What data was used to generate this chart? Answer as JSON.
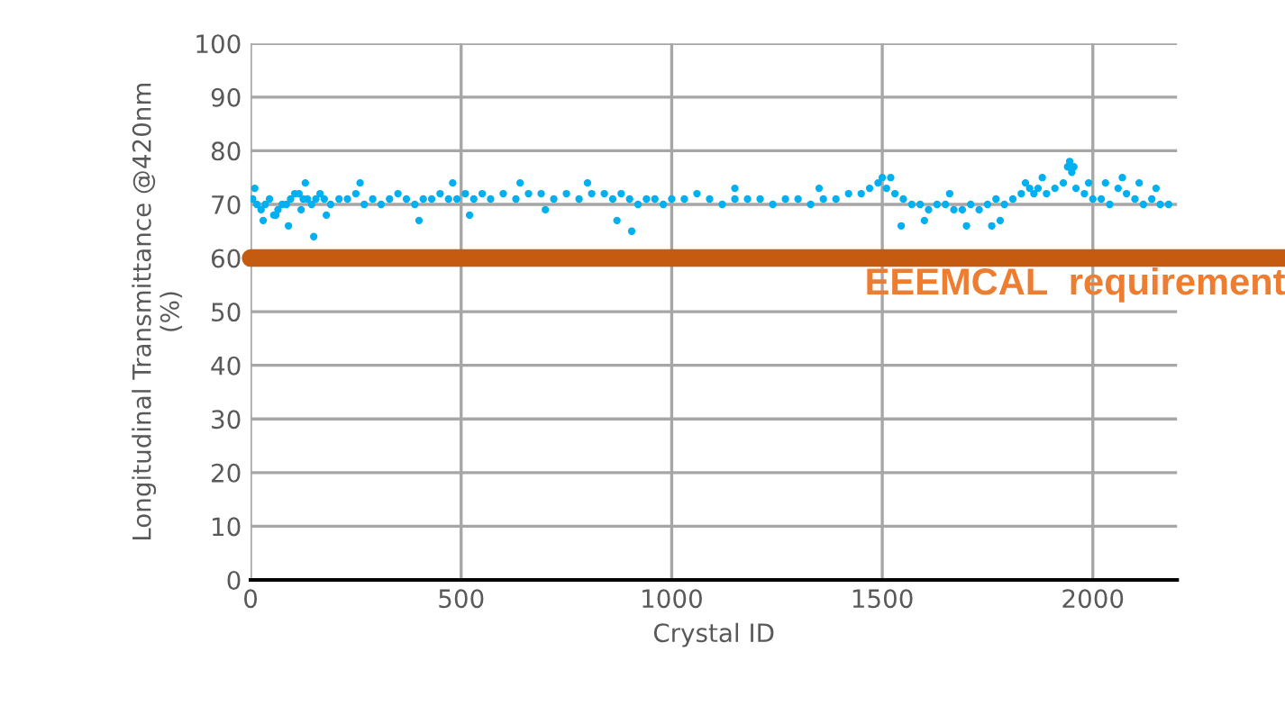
{
  "chart_data": {
    "type": "scatter",
    "xlabel": "Crystal ID",
    "ylabel": "Longitudinal Transmittance @420nm\n(%)",
    "xlim": [
      0,
      2200
    ],
    "xticks": [
      0,
      500,
      1000,
      1500,
      2000
    ],
    "ylim": [
      0,
      100
    ],
    "yticks": [
      0,
      10,
      20,
      30,
      40,
      50,
      60,
      70,
      80,
      90,
      100
    ],
    "grid": true,
    "marker": "circle",
    "series": [
      {
        "color": "#00b0f0",
        "x": [
          5,
          15,
          25,
          35,
          45,
          55,
          65,
          75,
          85,
          95,
          105,
          115,
          125,
          135,
          145,
          155,
          165,
          175,
          190,
          210,
          230,
          250,
          270,
          290,
          310,
          330,
          350,
          370,
          390,
          410,
          430,
          450,
          470,
          490,
          510,
          530,
          550,
          570,
          600,
          630,
          660,
          690,
          720,
          750,
          780,
          810,
          840,
          860,
          880,
          900,
          920,
          940,
          960,
          980,
          1000,
          1030,
          1060,
          1090,
          1120,
          1150,
          1180,
          1210,
          1240,
          1270,
          1300,
          1330,
          1360,
          1390,
          1420,
          1450,
          1470,
          1490,
          1500,
          1510,
          1530,
          1550,
          1570,
          1590,
          1610,
          1630,
          1650,
          1670,
          1690,
          1710,
          1730,
          1750,
          1770,
          1790,
          1810,
          1830,
          1850,
          1860,
          1870,
          1890,
          1910,
          1930,
          1940,
          1950,
          1960,
          1980,
          2000,
          2020,
          2040,
          2060,
          2080,
          2100,
          2120,
          2140,
          2160,
          2180,
          30,
          60,
          90,
          120,
          150,
          180,
          400,
          520,
          700,
          870,
          905,
          1545,
          1600,
          1700,
          1760,
          1780,
          1880,
          1945,
          1955,
          2030,
          2070,
          2150,
          10,
          130,
          260,
          480,
          640,
          800,
          1150,
          1350,
          1520,
          1660,
          1840,
          1990,
          2110
        ],
        "values": [
          71,
          70,
          69,
          70,
          71,
          68,
          69,
          70,
          70,
          71,
          72,
          72,
          71,
          71,
          70,
          71,
          72,
          71,
          70,
          71,
          71,
          72,
          70,
          71,
          70,
          71,
          72,
          71,
          70,
          71,
          71,
          72,
          71,
          71,
          72,
          71,
          72,
          71,
          72,
          71,
          72,
          72,
          71,
          72,
          71,
          72,
          72,
          71,
          72,
          71,
          70,
          71,
          71,
          70,
          71,
          71,
          72,
          71,
          70,
          71,
          71,
          71,
          70,
          71,
          71,
          70,
          71,
          71,
          72,
          72,
          73,
          74,
          75,
          73,
          72,
          71,
          70,
          70,
          69,
          70,
          70,
          69,
          69,
          70,
          69,
          70,
          71,
          70,
          71,
          72,
          73,
          72,
          73,
          72,
          73,
          74,
          77,
          76,
          73,
          72,
          71,
          71,
          70,
          73,
          72,
          71,
          70,
          71,
          70,
          70,
          67,
          68,
          66,
          69,
          64,
          68,
          67,
          68,
          69,
          67,
          65,
          66,
          67,
          66,
          66,
          67,
          75,
          78,
          77,
          74,
          75,
          73,
          73,
          74,
          74,
          74,
          74,
          74,
          73,
          73,
          75,
          72,
          74,
          74,
          74
        ]
      }
    ],
    "ref_lines": [
      {
        "axis": "y",
        "value": 60,
        "label": "EEEMCAL  requirement",
        "color": "#c55a11"
      }
    ]
  }
}
